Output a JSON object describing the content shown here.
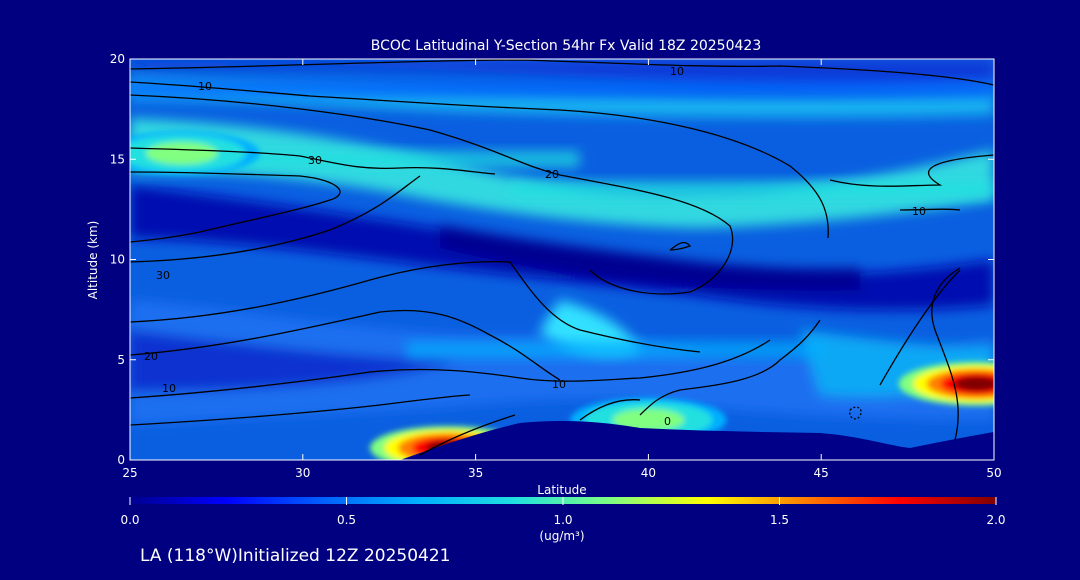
{
  "chart_data": {
    "type": "heatmap",
    "title": "BCOC Latitudinal Y-Section 54hr  Fx Valid 18Z 20250423",
    "xlabel": "Latitude",
    "ylabel": "Altitude (km)",
    "xlim": [
      25,
      50
    ],
    "ylim": [
      0,
      20
    ],
    "x_ticks": [
      "25",
      "30",
      "35",
      "40",
      "45",
      "50"
    ],
    "y_ticks": [
      "0",
      "5",
      "10",
      "15",
      "20"
    ],
    "colorbar": {
      "range": [
        0.0,
        2.0
      ],
      "ticks": [
        "0.0",
        "0.5",
        "1.0",
        "1.5",
        "2.0"
      ],
      "label_top": "1.0",
      "units": "(ug/m³)",
      "colors": [
        "#00008f",
        "#0000ff",
        "#0060ff",
        "#00b0ff",
        "#20e0e0",
        "#80ff80",
        "#ffff00",
        "#ff8000",
        "#ff0000",
        "#800000"
      ]
    },
    "contour_labels": [
      "10",
      "10",
      "30",
      "20",
      "10",
      "30",
      "20",
      "10",
      "10",
      "0"
    ],
    "footer": "LA (118°W)Initialized 12Z 20250421",
    "hotspots": [
      {
        "lat": 26.5,
        "alt": 15.3,
        "value": 1.2
      },
      {
        "lat": 34.2,
        "alt": 0.6,
        "value": 1.9
      },
      {
        "lat": 40.0,
        "alt": 2.0,
        "value": 1.2
      },
      {
        "lat": 49.5,
        "alt": 3.8,
        "value": 2.0
      }
    ],
    "bands": [
      {
        "alt": 15.0,
        "lat_from": 25,
        "lat_to": 38,
        "value": 0.9
      },
      {
        "alt": 18.5,
        "lat_from": 25,
        "lat_to": 50,
        "value": 0.55
      },
      {
        "alt": 13.5,
        "lat_from": 36,
        "lat_to": 50,
        "value": 0.8
      },
      {
        "alt": 5.5,
        "lat_from": 33,
        "lat_to": 45,
        "value": 0.7
      }
    ]
  }
}
